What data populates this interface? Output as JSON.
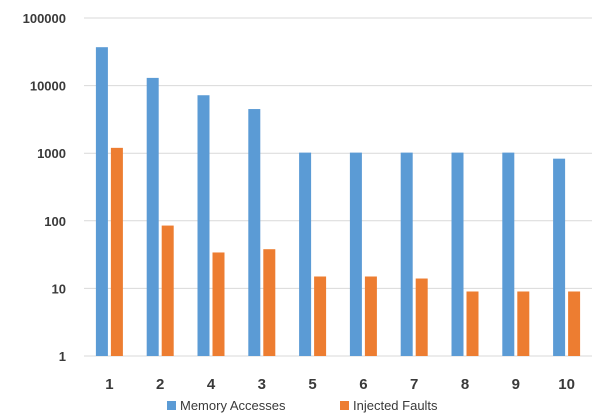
{
  "chart_data": {
    "type": "bar",
    "categories": [
      "1",
      "2",
      "4",
      "3",
      "5",
      "6",
      "7",
      "8",
      "9",
      "10"
    ],
    "series": [
      {
        "name": "Memory Accesses",
        "color": "#5b9bd5",
        "values": [
          37000,
          13000,
          7200,
          4500,
          1020,
          1020,
          1020,
          1020,
          1020,
          830
        ]
      },
      {
        "name": "Injected Faults",
        "color": "#ed7d31",
        "values": [
          1200,
          85,
          34,
          38,
          15,
          15,
          14,
          9,
          9,
          9
        ]
      }
    ],
    "y_scale": "log",
    "ylim": [
      1,
      100000
    ],
    "y_ticks": [
      "1",
      "10",
      "100",
      "1000",
      "10000",
      "100000"
    ],
    "grid": "horizontal",
    "legend_position": "bottom",
    "title": "",
    "xlabel": "",
    "ylabel": ""
  }
}
